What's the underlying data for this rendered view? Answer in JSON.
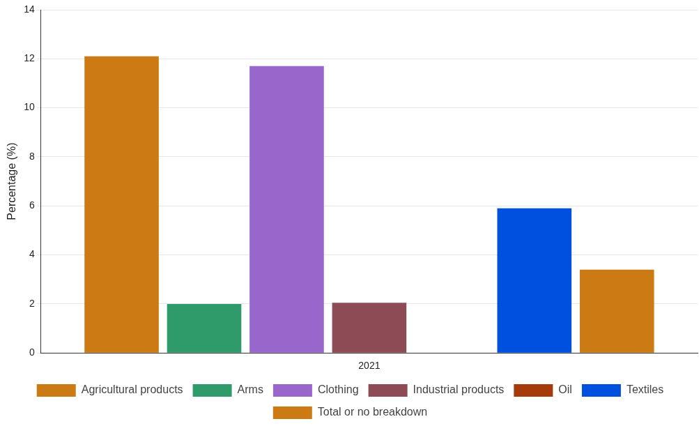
{
  "chart_data": {
    "type": "bar",
    "categories": [
      "2021"
    ],
    "ylabel": "Percentage (%)",
    "ylim": [
      0,
      14
    ],
    "yticks": [
      0,
      2,
      4,
      6,
      8,
      10,
      12,
      14
    ],
    "grid": "y",
    "legend": "bottom",
    "series": [
      {
        "name": "Agricultural products",
        "color": "#cc7a14",
        "values": [
          12.1
        ]
      },
      {
        "name": "Arms",
        "color": "#2f9a6a",
        "values": [
          2.0
        ]
      },
      {
        "name": "Clothing",
        "color": "#9966cc",
        "values": [
          11.7
        ]
      },
      {
        "name": "Industrial products",
        "color": "#8c4b55",
        "values": [
          2.05
        ]
      },
      {
        "name": "Oil",
        "color": "#a53a0a",
        "values": [
          null
        ]
      },
      {
        "name": "Textiles",
        "color": "#0050e0",
        "values": [
          5.9
        ]
      },
      {
        "name": "Total or no breakdown",
        "color": "#cc7a14",
        "values": [
          3.4
        ]
      }
    ]
  }
}
